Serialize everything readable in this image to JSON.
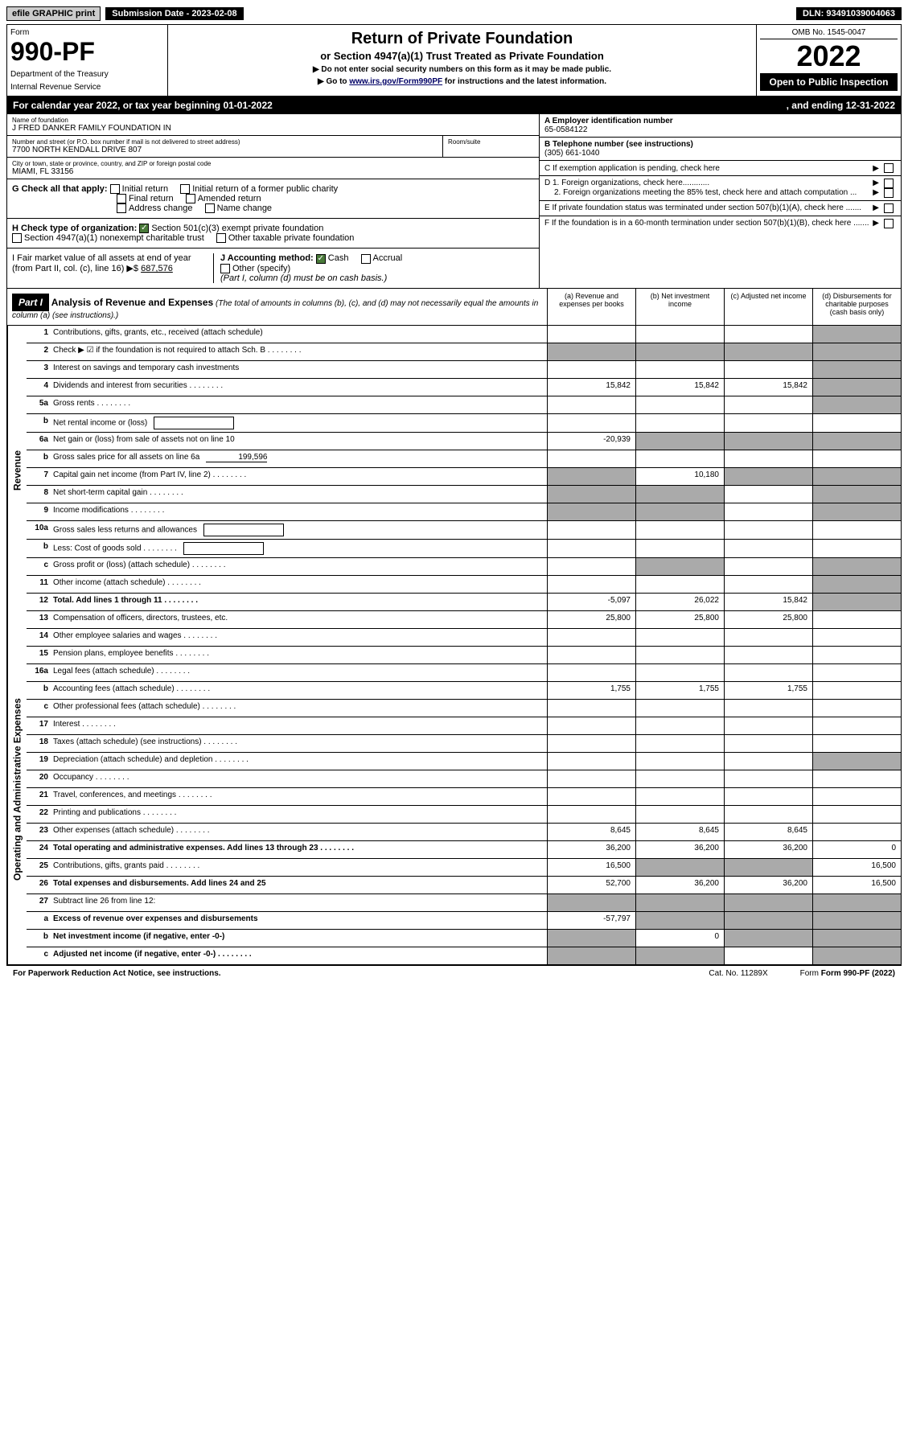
{
  "topbar": {
    "efile": "efile GRAPHIC print",
    "submission": "Submission Date - 2023-02-08",
    "dln": "DLN: 93491039004063"
  },
  "header": {
    "form_label": "Form",
    "form_number": "990-PF",
    "dept1": "Department of the Treasury",
    "dept2": "Internal Revenue Service",
    "title": "Return of Private Foundation",
    "subtitle": "or Section 4947(a)(1) Trust Treated as Private Foundation",
    "note1": "▶ Do not enter social security numbers on this form as it may be made public.",
    "note2": "▶ Go to ",
    "note2_link": "www.irs.gov/Form990PF",
    "note2_rest": " for instructions and the latest information.",
    "omb": "OMB No. 1545-0047",
    "year": "2022",
    "open": "Open to Public Inspection"
  },
  "calyear": {
    "begin": "For calendar year 2022, or tax year beginning 01-01-2022",
    "end": ", and ending 12-31-2022"
  },
  "info": {
    "name_label": "Name of foundation",
    "name": "J FRED DANKER FAMILY FOUNDATION IN",
    "addr_label": "Number and street (or P.O. box number if mail is not delivered to street address)",
    "addr": "7700 NORTH KENDALL DRIVE 807",
    "room_label": "Room/suite",
    "city_label": "City or town, state or province, country, and ZIP or foreign postal code",
    "city": "MIAMI, FL  33156",
    "a_label": "A Employer identification number",
    "a_value": "65-0584122",
    "b_label": "B Telephone number (see instructions)",
    "b_value": "(305) 661-1040",
    "c_label": "C If exemption application is pending, check here",
    "d1_label": "D 1. Foreign organizations, check here............",
    "d2_label": "2. Foreign organizations meeting the 85% test, check here and attach computation ...",
    "e_label": "E  If private foundation status was terminated under section 507(b)(1)(A), check here .......",
    "f_label": "F  If the foundation is in a 60-month termination under section 507(b)(1)(B), check here .......",
    "g_label": "G Check all that apply:",
    "g_initial": "Initial return",
    "g_initial_former": "Initial return of a former public charity",
    "g_final": "Final return",
    "g_amended": "Amended return",
    "g_address": "Address change",
    "g_name": "Name change",
    "h_label": "H Check type of organization:",
    "h_501": "Section 501(c)(3) exempt private foundation",
    "h_4947": "Section 4947(a)(1) nonexempt charitable trust",
    "h_other": "Other taxable private foundation",
    "i_label": "I Fair market value of all assets at end of year (from Part II, col. (c), line 16)",
    "i_value": "687,576",
    "j_label": "J Accounting method:",
    "j_cash": "Cash",
    "j_accrual": "Accrual",
    "j_other": "Other (specify)",
    "j_note": "(Part I, column (d) must be on cash basis.)"
  },
  "part1": {
    "label": "Part I",
    "title": "Analysis of Revenue and Expenses",
    "subtitle": "(The total of amounts in columns (b), (c), and (d) may not necessarily equal the amounts in column (a) (see instructions).)",
    "col_a": "(a)    Revenue and expenses per books",
    "col_b": "(b)    Net investment income",
    "col_c": "(c)   Adjusted net income",
    "col_d": "(d)   Disbursements for charitable purposes (cash basis only)"
  },
  "sidelabels": {
    "revenue": "Revenue",
    "expenses": "Operating and Administrative Expenses"
  },
  "rows": [
    {
      "num": "1",
      "desc": "Contributions, gifts, grants, etc., received (attach schedule)",
      "a": "",
      "b": "",
      "c": "",
      "d": "",
      "d_gray": true
    },
    {
      "num": "2",
      "desc": "Check ▶ ☑ if the foundation is not required to attach Sch. B",
      "dots": true,
      "nocells": true
    },
    {
      "num": "3",
      "desc": "Interest on savings and temporary cash investments",
      "a": "",
      "b": "",
      "c": "",
      "d": "",
      "d_gray": true
    },
    {
      "num": "4",
      "desc": "Dividends and interest from securities",
      "dots": true,
      "a": "15,842",
      "b": "15,842",
      "c": "15,842",
      "d": "",
      "d_gray": true
    },
    {
      "num": "5a",
      "desc": "Gross rents",
      "dots": true,
      "a": "",
      "b": "",
      "c": "",
      "d": "",
      "d_gray": true
    },
    {
      "num": "b",
      "desc": "Net rental income or (loss)",
      "inline_box": true
    },
    {
      "num": "6a",
      "desc": "Net gain or (loss) from sale of assets not on line 10",
      "a": "-20,939",
      "b": "",
      "c": "",
      "d": "",
      "b_gray": true,
      "c_gray": true,
      "d_gray": true
    },
    {
      "num": "b",
      "desc": "Gross sales price for all assets on line 6a",
      "inline_val": "199,596"
    },
    {
      "num": "7",
      "desc": "Capital gain net income (from Part IV, line 2)",
      "dots": true,
      "a": "",
      "b": "10,180",
      "c": "",
      "d": "",
      "a_gray": true,
      "c_gray": true,
      "d_gray": true
    },
    {
      "num": "8",
      "desc": "Net short-term capital gain",
      "dots": true,
      "a": "",
      "b": "",
      "c": "",
      "d": "",
      "a_gray": true,
      "b_gray": true,
      "d_gray": true
    },
    {
      "num": "9",
      "desc": "Income modifications",
      "dots": true,
      "a": "",
      "b": "",
      "c": "",
      "d": "",
      "a_gray": true,
      "b_gray": true,
      "d_gray": true
    },
    {
      "num": "10a",
      "desc": "Gross sales less returns and allowances",
      "inline_box": true
    },
    {
      "num": "b",
      "desc": "Less: Cost of goods sold",
      "dots": true,
      "inline_box": true
    },
    {
      "num": "c",
      "desc": "Gross profit or (loss) (attach schedule)",
      "dots": true,
      "a": "",
      "b": "",
      "c": "",
      "d": "",
      "b_gray": true,
      "d_gray": true
    },
    {
      "num": "11",
      "desc": "Other income (attach schedule)",
      "dots": true,
      "a": "",
      "b": "",
      "c": "",
      "d": "",
      "d_gray": true
    },
    {
      "num": "12",
      "desc": "Total. Add lines 1 through 11",
      "dots": true,
      "bold": true,
      "a": "-5,097",
      "b": "26,022",
      "c": "15,842",
      "d": "",
      "d_gray": true
    },
    {
      "num": "13",
      "desc": "Compensation of officers, directors, trustees, etc.",
      "a": "25,800",
      "b": "25,800",
      "c": "25,800",
      "d": ""
    },
    {
      "num": "14",
      "desc": "Other employee salaries and wages",
      "dots": true,
      "a": "",
      "b": "",
      "c": "",
      "d": ""
    },
    {
      "num": "15",
      "desc": "Pension plans, employee benefits",
      "dots": true,
      "a": "",
      "b": "",
      "c": "",
      "d": ""
    },
    {
      "num": "16a",
      "desc": "Legal fees (attach schedule)",
      "dots": true,
      "a": "",
      "b": "",
      "c": "",
      "d": ""
    },
    {
      "num": "b",
      "desc": "Accounting fees (attach schedule)",
      "dots": true,
      "a": "1,755",
      "b": "1,755",
      "c": "1,755",
      "d": ""
    },
    {
      "num": "c",
      "desc": "Other professional fees (attach schedule)",
      "dots": true,
      "a": "",
      "b": "",
      "c": "",
      "d": ""
    },
    {
      "num": "17",
      "desc": "Interest",
      "dots": true,
      "a": "",
      "b": "",
      "c": "",
      "d": ""
    },
    {
      "num": "18",
      "desc": "Taxes (attach schedule) (see instructions)",
      "dots": true,
      "a": "",
      "b": "",
      "c": "",
      "d": ""
    },
    {
      "num": "19",
      "desc": "Depreciation (attach schedule) and depletion",
      "dots": true,
      "a": "",
      "b": "",
      "c": "",
      "d": "",
      "d_gray": true
    },
    {
      "num": "20",
      "desc": "Occupancy",
      "dots": true,
      "a": "",
      "b": "",
      "c": "",
      "d": ""
    },
    {
      "num": "21",
      "desc": "Travel, conferences, and meetings",
      "dots": true,
      "a": "",
      "b": "",
      "c": "",
      "d": ""
    },
    {
      "num": "22",
      "desc": "Printing and publications",
      "dots": true,
      "a": "",
      "b": "",
      "c": "",
      "d": ""
    },
    {
      "num": "23",
      "desc": "Other expenses (attach schedule)",
      "dots": true,
      "a": "8,645",
      "b": "8,645",
      "c": "8,645",
      "d": ""
    },
    {
      "num": "24",
      "desc": "Total operating and administrative expenses. Add lines 13 through 23",
      "dots": true,
      "bold": true,
      "a": "36,200",
      "b": "36,200",
      "c": "36,200",
      "d": "0"
    },
    {
      "num": "25",
      "desc": "Contributions, gifts, grants paid",
      "dots": true,
      "a": "16,500",
      "b": "",
      "c": "",
      "d": "16,500",
      "b_gray": true,
      "c_gray": true
    },
    {
      "num": "26",
      "desc": "Total expenses and disbursements. Add lines 24 and 25",
      "bold": true,
      "a": "52,700",
      "b": "36,200",
      "c": "36,200",
      "d": "16,500"
    },
    {
      "num": "27",
      "desc": "Subtract line 26 from line 12:",
      "a": "",
      "b": "",
      "c": "",
      "d": "",
      "a_gray": true,
      "b_gray": true,
      "c_gray": true,
      "d_gray": true
    },
    {
      "num": "a",
      "desc": "Excess of revenue over expenses and disbursements",
      "bold": true,
      "a": "-57,797",
      "b": "",
      "c": "",
      "d": "",
      "b_gray": true,
      "c_gray": true,
      "d_gray": true
    },
    {
      "num": "b",
      "desc": "Net investment income (if negative, enter -0-)",
      "bold": true,
      "a": "",
      "b": "0",
      "c": "",
      "d": "",
      "a_gray": true,
      "c_gray": true,
      "d_gray": true
    },
    {
      "num": "c",
      "desc": "Adjusted net income (if negative, enter -0-)",
      "dots": true,
      "bold": true,
      "a": "",
      "b": "",
      "c": "",
      "d": "",
      "a_gray": true,
      "b_gray": true,
      "d_gray": true
    }
  ],
  "footer": {
    "left": "For Paperwork Reduction Act Notice, see instructions.",
    "center": "Cat. No. 11289X",
    "right": "Form 990-PF (2022)"
  }
}
